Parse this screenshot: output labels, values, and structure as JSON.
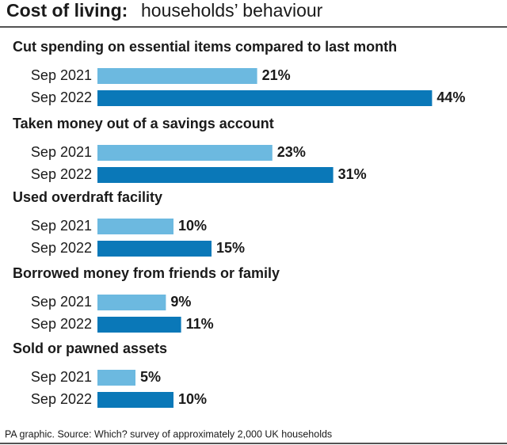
{
  "chart_data": {
    "type": "bar",
    "title": "Cost of living:",
    "subtitle": "households’ behaviour",
    "groups": [
      "Cut spending on essential items compared to last month",
      "Taken money out of a savings account",
      "Used overdraft facility",
      "Borrowed money from friends or family",
      "Sold or pawned assets"
    ],
    "series": [
      {
        "name": "Sep 2021",
        "color": "#6cb9e0",
        "values": [
          21,
          23,
          10,
          9,
          5
        ],
        "value_labels": [
          "21%",
          "23%",
          "10%",
          "9%",
          "5%"
        ]
      },
      {
        "name": "Sep 2022",
        "color": "#0a78b8",
        "values": [
          44,
          31,
          15,
          11,
          10
        ],
        "value_labels": [
          "44%",
          "31%",
          "15%",
          "11%",
          "10%"
        ]
      }
    ],
    "source": "PA graphic. Source: Which? survey of approximately 2,000 UK households"
  }
}
